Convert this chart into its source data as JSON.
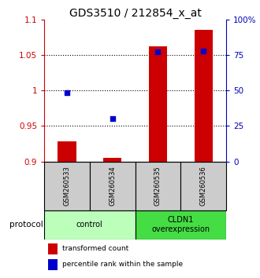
{
  "title": "GDS3510 / 212854_x_at",
  "samples": [
    "GSM260533",
    "GSM260534",
    "GSM260535",
    "GSM260536"
  ],
  "transformed_counts": [
    0.928,
    0.905,
    1.062,
    1.085
  ],
  "percentile_ranks_pct": [
    48.5,
    30.0,
    77.0,
    78.0
  ],
  "ylim_left": [
    0.9,
    1.1
  ],
  "ylim_right": [
    0.0,
    100.0
  ],
  "yticks_left": [
    0.9,
    0.95,
    1.0,
    1.05,
    1.1
  ],
  "ytick_labels_left": [
    "0.9",
    "0.95",
    "1",
    "1.05",
    "1.1"
  ],
  "yticks_right": [
    0,
    25,
    50,
    75,
    100
  ],
  "ytick_labels_right": [
    "0",
    "25",
    "50",
    "75",
    "100%"
  ],
  "hlines": [
    0.95,
    1.0,
    1.05
  ],
  "bar_color": "#cc0000",
  "dot_color": "#0000cc",
  "groups": [
    {
      "label": "control",
      "samples": [
        0,
        1
      ],
      "color": "#bbffbb"
    },
    {
      "label": "CLDN1\noverexpression",
      "samples": [
        2,
        3
      ],
      "color": "#44dd44"
    }
  ],
  "protocol_label": "protocol",
  "legend_bar_label": "transformed count",
  "legend_dot_label": "percentile rank within the sample",
  "title_fontsize": 10,
  "tick_label_fontsize": 7.5,
  "axis_color_left": "#cc0000",
  "axis_color_right": "#0000bb",
  "sample_box_color": "#cccccc",
  "bar_bottom": 0.9,
  "bar_width": 0.4
}
